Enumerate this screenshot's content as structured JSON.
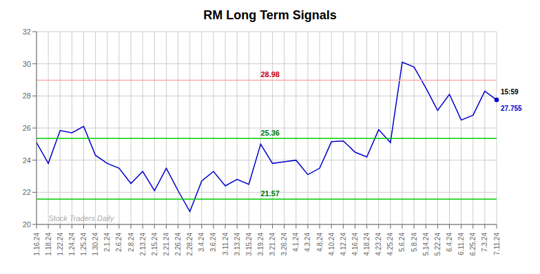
{
  "chart_data": {
    "type": "line",
    "title": "RM Long Term Signals",
    "categories": [
      "1.16.24",
      "1.18.24",
      "1.22.24",
      "1.24.24",
      "1.25.24",
      "1.30.24",
      "2.1.24",
      "2.6.24",
      "2.8.24",
      "2.13.24",
      "2.15.24",
      "2.21.24",
      "2.26.24",
      "2.28.24",
      "3.4.24",
      "3.6.24",
      "3.11.24",
      "3.13.24",
      "3.15.24",
      "3.19.24",
      "3.21.24",
      "3.26.24",
      "4.1.24",
      "4.3.24",
      "4.8.24",
      "4.10.24",
      "4.12.24",
      "4.16.24",
      "4.18.24",
      "4.23.24",
      "4.25.24",
      "5.6.24",
      "5.8.24",
      "5.14.24",
      "5.22.24",
      "6.4.24",
      "6.11.24",
      "6.25.24",
      "7.3.24",
      "7.11.24"
    ],
    "values": [
      25.1,
      23.8,
      25.85,
      25.7,
      26.1,
      24.3,
      23.8,
      23.5,
      22.55,
      23.3,
      22.1,
      23.5,
      22.1,
      20.8,
      22.7,
      23.3,
      22.4,
      22.8,
      22.5,
      25.0,
      23.8,
      23.9,
      24.0,
      23.1,
      23.5,
      25.15,
      25.2,
      24.5,
      24.2,
      25.9,
      25.1,
      30.1,
      29.8,
      28.5,
      27.1,
      28.1,
      26.5,
      26.8,
      28.3,
      27.755
    ],
    "color": "#0000cc",
    "ylim": [
      20,
      32
    ],
    "yticks": [
      20,
      22,
      24,
      26,
      28,
      30,
      32
    ],
    "grid": true,
    "hlines": [
      {
        "value": 28.98,
        "color": "#ffaaaa",
        "label": "28.98",
        "label_color": "#cc0000"
      },
      {
        "value": 25.36,
        "color": "#00cc00",
        "label": "25.36",
        "label_color": "#007700"
      },
      {
        "value": 21.57,
        "color": "#00cc00",
        "label": "21.57",
        "label_color": "#007700"
      }
    ],
    "last_point": {
      "label": "15:59",
      "value_label": "27.755",
      "color": "#0000cc"
    },
    "watermark": {
      "text": "Stock Traders Daily",
      "color": "#aaaaaa"
    }
  }
}
